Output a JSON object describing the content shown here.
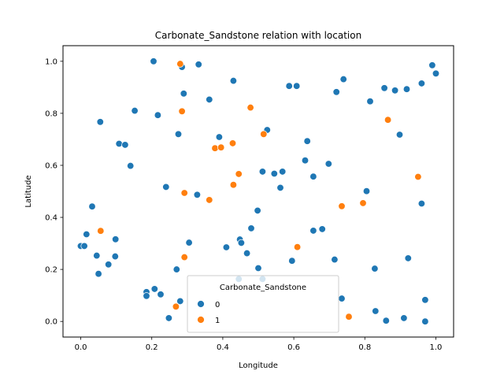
{
  "chart_data": {
    "type": "scatter",
    "title": "Carbonate_Sandstone relation with location",
    "xlabel": "Longitude",
    "ylabel": "Latitude",
    "xlim": [
      -0.05,
      1.05
    ],
    "ylim": [
      -0.06,
      1.06
    ],
    "xticks": [
      "0.0",
      "0.2",
      "0.4",
      "0.6",
      "0.8",
      "1.0"
    ],
    "yticks": [
      "0.0",
      "0.2",
      "0.4",
      "0.6",
      "0.8",
      "1.0"
    ],
    "grid": false,
    "legend": {
      "title": "Carbonate_Sandstone",
      "placement": "lower-center",
      "entries": [
        "0",
        "1"
      ]
    },
    "series": [
      {
        "name": "0",
        "color": "#1f77b4",
        "points": [
          [
            0.205,
            1.0
          ],
          [
            0.285,
            0.978
          ],
          [
            0.332,
            0.988
          ],
          [
            0.29,
            0.876
          ],
          [
            0.362,
            0.853
          ],
          [
            0.43,
            0.925
          ],
          [
            0.587,
            0.905
          ],
          [
            0.608,
            0.905
          ],
          [
            0.74,
            0.931
          ],
          [
            0.72,
            0.882
          ],
          [
            0.815,
            0.846
          ],
          [
            0.855,
            0.897
          ],
          [
            0.885,
            0.888
          ],
          [
            0.918,
            0.893
          ],
          [
            0.96,
            0.915
          ],
          [
            0.99,
            0.985
          ],
          [
            1.0,
            0.953
          ],
          [
            0.898,
            0.718
          ],
          [
            0.152,
            0.81
          ],
          [
            0.217,
            0.793
          ],
          [
            0.055,
            0.767
          ],
          [
            0.108,
            0.683
          ],
          [
            0.125,
            0.679
          ],
          [
            0.14,
            0.598
          ],
          [
            0.275,
            0.72
          ],
          [
            0.39,
            0.709
          ],
          [
            0.525,
            0.736
          ],
          [
            0.638,
            0.693
          ],
          [
            0.632,
            0.619
          ],
          [
            0.698,
            0.606
          ],
          [
            0.512,
            0.576
          ],
          [
            0.545,
            0.568
          ],
          [
            0.568,
            0.576
          ],
          [
            0.655,
            0.557
          ],
          [
            0.562,
            0.514
          ],
          [
            0.24,
            0.517
          ],
          [
            0.328,
            0.487
          ],
          [
            0.805,
            0.501
          ],
          [
            0.96,
            0.453
          ],
          [
            0.032,
            0.442
          ],
          [
            0.498,
            0.426
          ],
          [
            0.48,
            0.358
          ],
          [
            0.655,
            0.349
          ],
          [
            0.68,
            0.355
          ],
          [
            0.016,
            0.335
          ],
          [
            0.098,
            0.316
          ],
          [
            0.305,
            0.303
          ],
          [
            0.41,
            0.285
          ],
          [
            0.448,
            0.315
          ],
          [
            0.452,
            0.302
          ],
          [
            0.468,
            0.262
          ],
          [
            0.0,
            0.29
          ],
          [
            0.01,
            0.29
          ],
          [
            0.045,
            0.253
          ],
          [
            0.097,
            0.25
          ],
          [
            0.078,
            0.219
          ],
          [
            0.05,
            0.183
          ],
          [
            0.595,
            0.233
          ],
          [
            0.715,
            0.238
          ],
          [
            0.922,
            0.243
          ],
          [
            0.5,
            0.205
          ],
          [
            0.828,
            0.203
          ],
          [
            0.27,
            0.2
          ],
          [
            0.445,
            0.163
          ],
          [
            0.512,
            0.163
          ],
          [
            0.185,
            0.113
          ],
          [
            0.185,
            0.098
          ],
          [
            0.208,
            0.125
          ],
          [
            0.225,
            0.104
          ],
          [
            0.248,
            0.013
          ],
          [
            0.28,
            0.078
          ],
          [
            0.735,
            0.088
          ],
          [
            0.83,
            0.04
          ],
          [
            0.86,
            0.003
          ],
          [
            0.91,
            0.013
          ],
          [
            0.97,
            0.083
          ],
          [
            0.97,
            0.0
          ]
        ]
      },
      {
        "name": "1",
        "color": "#ff7f0e",
        "points": [
          [
            0.28,
            0.99
          ],
          [
            0.285,
            0.808
          ],
          [
            0.478,
            0.822
          ],
          [
            0.515,
            0.72
          ],
          [
            0.865,
            0.775
          ],
          [
            0.378,
            0.666
          ],
          [
            0.395,
            0.669
          ],
          [
            0.428,
            0.685
          ],
          [
            0.445,
            0.567
          ],
          [
            0.43,
            0.525
          ],
          [
            0.95,
            0.556
          ],
          [
            0.292,
            0.494
          ],
          [
            0.362,
            0.467
          ],
          [
            0.735,
            0.443
          ],
          [
            0.795,
            0.455
          ],
          [
            0.056,
            0.348
          ],
          [
            0.61,
            0.286
          ],
          [
            0.292,
            0.247
          ],
          [
            0.268,
            0.057
          ],
          [
            0.755,
            0.018
          ]
        ]
      }
    ]
  }
}
